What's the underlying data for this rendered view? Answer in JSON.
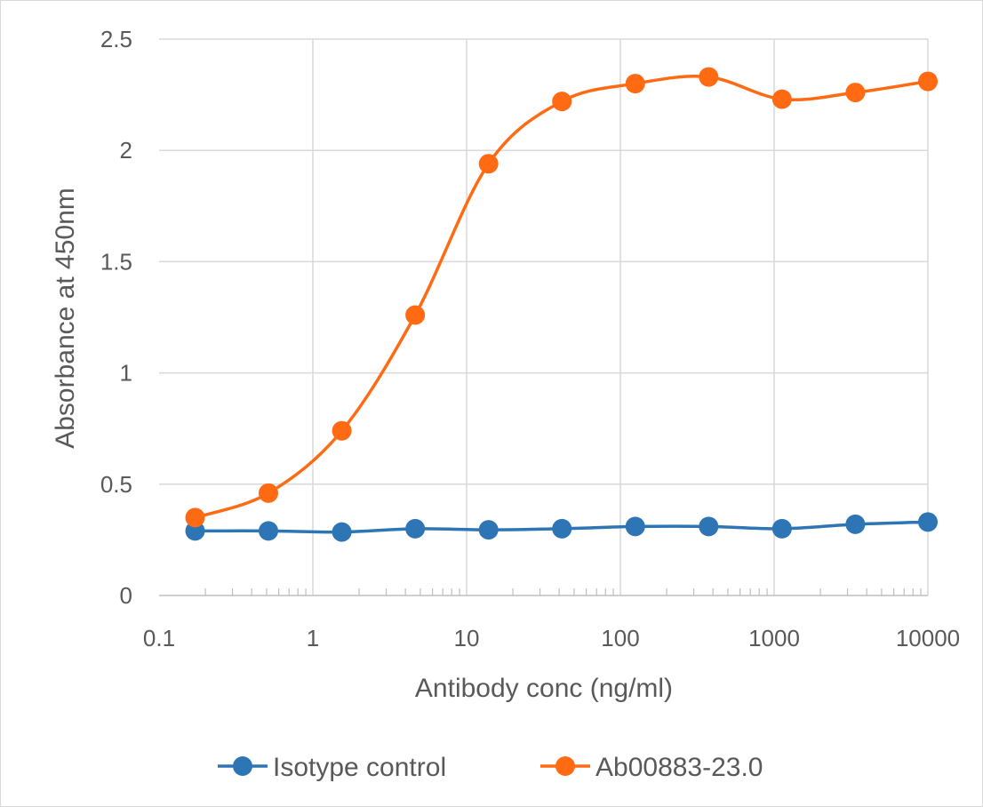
{
  "chart_data": {
    "type": "line",
    "title": "",
    "xlabel": "Antibody conc (ng/ml)",
    "ylabel": "Absorbance at 450nm",
    "xscale": "log",
    "xlim": [
      0.1,
      10000
    ],
    "ylim": [
      0,
      2.5
    ],
    "x_ticks": [
      0.1,
      1,
      10,
      100,
      1000,
      10000
    ],
    "x_tick_labels": [
      "0.1",
      "1",
      "10",
      "100",
      "1000",
      "10000"
    ],
    "y_ticks": [
      0,
      0.5,
      1,
      1.5,
      2,
      2.5
    ],
    "y_tick_labels": [
      "0",
      "0.5",
      "1",
      "1.5",
      "2",
      "2.5"
    ],
    "grid": true,
    "legend_position": "bottom",
    "series": [
      {
        "name": "Isotype control",
        "color": "#2e75b6",
        "marker": "circle",
        "smooth": true,
        "x": [
          0.1715,
          0.514,
          1.543,
          4.63,
          13.89,
          41.67,
          125,
          375,
          1125,
          3375,
          10000
        ],
        "y": [
          0.29,
          0.29,
          0.285,
          0.3,
          0.295,
          0.3,
          0.31,
          0.31,
          0.3,
          0.32,
          0.33
        ]
      },
      {
        "name": "Ab00883-23.0",
        "color": "#ff6a13",
        "marker": "circle",
        "smooth": true,
        "x": [
          0.1715,
          0.514,
          1.543,
          4.63,
          13.89,
          41.67,
          125,
          375,
          1125,
          3375,
          10000
        ],
        "y": [
          0.35,
          0.46,
          0.74,
          1.26,
          1.94,
          2.22,
          2.3,
          2.33,
          2.23,
          2.26,
          2.31
        ]
      }
    ]
  }
}
